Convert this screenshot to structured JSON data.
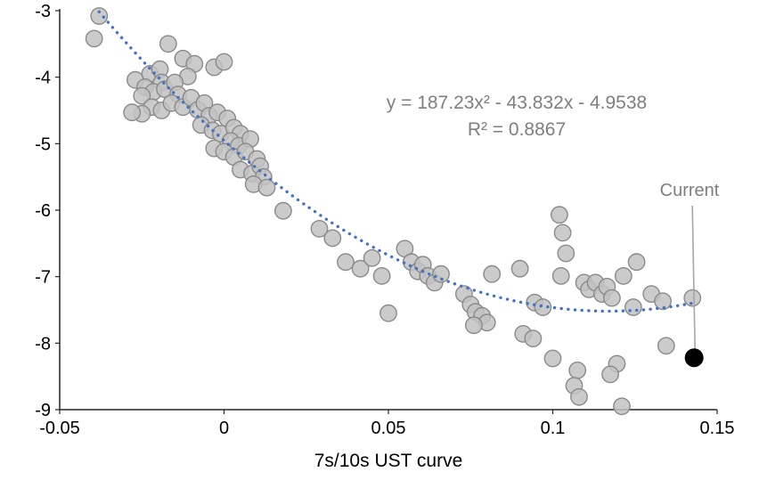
{
  "chart_data": {
    "type": "scatter",
    "title": "",
    "xlabel": "7s/10s UST curve",
    "ylabel": "",
    "xlim": [
      -0.05,
      0.15
    ],
    "ylim": [
      -9,
      -3
    ],
    "grid": false,
    "legend_position": "none",
    "equation_line1": "y = 187.23x² - 43.832x - 4.9538",
    "equation_line2": "R² = 0.8867",
    "x_ticks": [
      {
        "value": -0.05,
        "label": "-0.05"
      },
      {
        "value": 0,
        "label": "0"
      },
      {
        "value": 0.05,
        "label": "0.05"
      },
      {
        "value": 0.1,
        "label": "0.1"
      },
      {
        "value": 0.15,
        "label": "0.15"
      }
    ],
    "y_ticks": [
      {
        "value": -9,
        "label": "-9"
      },
      {
        "value": -8,
        "label": "-8"
      },
      {
        "value": -7,
        "label": "-7"
      },
      {
        "value": -6,
        "label": "-6"
      },
      {
        "value": -5,
        "label": "-5"
      },
      {
        "value": -4,
        "label": "-4"
      },
      {
        "value": -3,
        "label": "-3"
      }
    ],
    "point_color": "#c2c2c2",
    "point_stroke": "#8a8a8a",
    "trendline": {
      "a": 187.23,
      "b": -43.832,
      "c": -4.9538,
      "x_start": -0.038,
      "x_end": 0.1435,
      "color": "#4472c4",
      "style": "dotted"
    },
    "annotation": {
      "label": "Current",
      "x": 0.143,
      "y": -8.22,
      "color": "#000000",
      "leader_color": "#a6a6a6"
    },
    "points": [
      [
        -0.038,
        -3.08
      ],
      [
        -0.0395,
        -3.42
      ],
      [
        -0.017,
        -3.5
      ],
      [
        -0.0125,
        -3.72
      ],
      [
        -0.009,
        -3.8
      ],
      [
        -0.011,
        -3.99
      ],
      [
        -0.027,
        -4.04
      ],
      [
        -0.0225,
        -3.95
      ],
      [
        -0.0195,
        -3.88
      ],
      [
        -0.019,
        -4.08
      ],
      [
        -0.024,
        -4.15
      ],
      [
        -0.0215,
        -4.22
      ],
      [
        -0.025,
        -4.28
      ],
      [
        -0.018,
        -4.18
      ],
      [
        -0.015,
        -4.08
      ],
      [
        -0.014,
        -4.26
      ],
      [
        -0.003,
        -3.85
      ],
      [
        0.0,
        -3.77
      ],
      [
        -0.022,
        -4.45
      ],
      [
        -0.019,
        -4.5
      ],
      [
        -0.016,
        -4.39
      ],
      [
        -0.0125,
        -4.45
      ],
      [
        -0.01,
        -4.31
      ],
      [
        -0.008,
        -4.49
      ],
      [
        -0.006,
        -4.39
      ],
      [
        -0.025,
        -4.55
      ],
      [
        -0.028,
        -4.53
      ],
      [
        -0.0045,
        -4.58
      ],
      [
        -0.002,
        -4.53
      ],
      [
        0.001,
        -4.62
      ],
      [
        -0.007,
        -4.72
      ],
      [
        -0.0035,
        -4.8
      ],
      [
        -0.001,
        -4.85
      ],
      [
        0.003,
        -4.76
      ],
      [
        0.005,
        -4.85
      ],
      [
        0.002,
        -4.96
      ],
      [
        0.0045,
        -5.03
      ],
      [
        0.008,
        -4.93
      ],
      [
        -0.003,
        -5.07
      ],
      [
        0.0,
        -5.12
      ],
      [
        0.003,
        -5.2
      ],
      [
        0.0065,
        -5.12
      ],
      [
        0.01,
        -5.23
      ],
      [
        0.005,
        -5.39
      ],
      [
        0.0085,
        -5.45
      ],
      [
        0.011,
        -5.34
      ],
      [
        0.012,
        -5.5
      ],
      [
        0.009,
        -5.61
      ],
      [
        0.013,
        -5.66
      ],
      [
        0.018,
        -6.01
      ],
      [
        0.029,
        -6.28
      ],
      [
        0.033,
        -6.42
      ],
      [
        0.037,
        -6.78
      ],
      [
        0.0415,
        -6.88
      ],
      [
        0.045,
        -6.72
      ],
      [
        0.048,
        -6.99
      ],
      [
        0.05,
        -7.55
      ],
      [
        0.055,
        -6.58
      ],
      [
        0.057,
        -6.78
      ],
      [
        0.059,
        -6.92
      ],
      [
        0.0605,
        -6.82
      ],
      [
        0.062,
        -6.99
      ],
      [
        0.064,
        -7.09
      ],
      [
        0.066,
        -6.96
      ],
      [
        0.073,
        -7.26
      ],
      [
        0.075,
        -7.42
      ],
      [
        0.0765,
        -7.53
      ],
      [
        0.0785,
        -7.59
      ],
      [
        0.08,
        -7.69
      ],
      [
        0.076,
        -7.73
      ],
      [
        0.0815,
        -6.96
      ],
      [
        0.09,
        -6.88
      ],
      [
        0.091,
        -7.86
      ],
      [
        0.094,
        -7.93
      ],
      [
        0.0945,
        -7.39
      ],
      [
        0.097,
        -7.46
      ],
      [
        0.102,
        -6.07
      ],
      [
        0.103,
        -6.34
      ],
      [
        0.104,
        -6.65
      ],
      [
        0.1025,
        -6.99
      ],
      [
        0.1,
        -8.23
      ],
      [
        0.1075,
        -8.41
      ],
      [
        0.1065,
        -8.64
      ],
      [
        0.108,
        -8.81
      ],
      [
        0.1095,
        -7.09
      ],
      [
        0.111,
        -7.19
      ],
      [
        0.113,
        -7.09
      ],
      [
        0.115,
        -7.26
      ],
      [
        0.1165,
        -7.15
      ],
      [
        0.118,
        -7.32
      ],
      [
        0.1195,
        -8.31
      ],
      [
        0.1175,
        -8.47
      ],
      [
        0.121,
        -8.95
      ],
      [
        0.1215,
        -6.99
      ],
      [
        0.1245,
        -7.46
      ],
      [
        0.1255,
        -6.78
      ],
      [
        0.13,
        -7.26
      ],
      [
        0.1335,
        -7.37
      ],
      [
        0.1345,
        -8.04
      ],
      [
        0.1425,
        -7.32
      ]
    ]
  }
}
